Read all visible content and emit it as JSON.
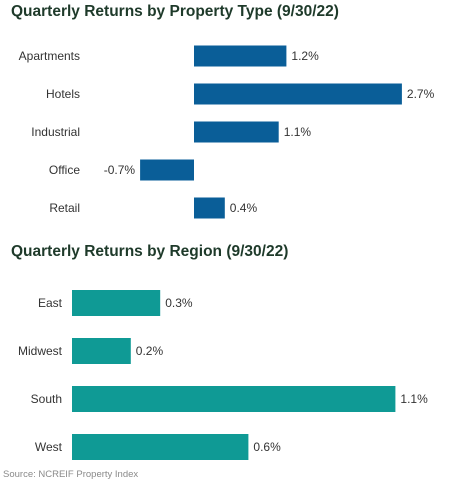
{
  "colors": {
    "property_bar": "#0a5e98",
    "region_bar": "#0f9a95",
    "title_text": "#1e3a2a"
  },
  "chart_data": [
    {
      "type": "bar",
      "orientation": "horizontal",
      "title": "Quarterly Returns by Property Type (9/30/22)",
      "categories": [
        "Apartments",
        "Hotels",
        "Industrial",
        "Office",
        "Retail"
      ],
      "values": [
        1.2,
        2.7,
        1.1,
        -0.7,
        0.4
      ],
      "value_labels": [
        "1.2%",
        "2.7%",
        "1.1%",
        "-0.7%",
        "0.4%"
      ],
      "unit": "%",
      "grid": false,
      "legend": "none"
    },
    {
      "type": "bar",
      "orientation": "horizontal",
      "title": "Quarterly Returns by Region (9/30/22)",
      "categories": [
        "East",
        "Midwest",
        "South",
        "West"
      ],
      "values": [
        0.3,
        0.2,
        1.1,
        0.6
      ],
      "value_labels": [
        "0.3%",
        "0.2%",
        "1.1%",
        "0.6%"
      ],
      "unit": "%",
      "grid": false,
      "legend": "none"
    }
  ],
  "source": "Source: NCREIF Property Index"
}
